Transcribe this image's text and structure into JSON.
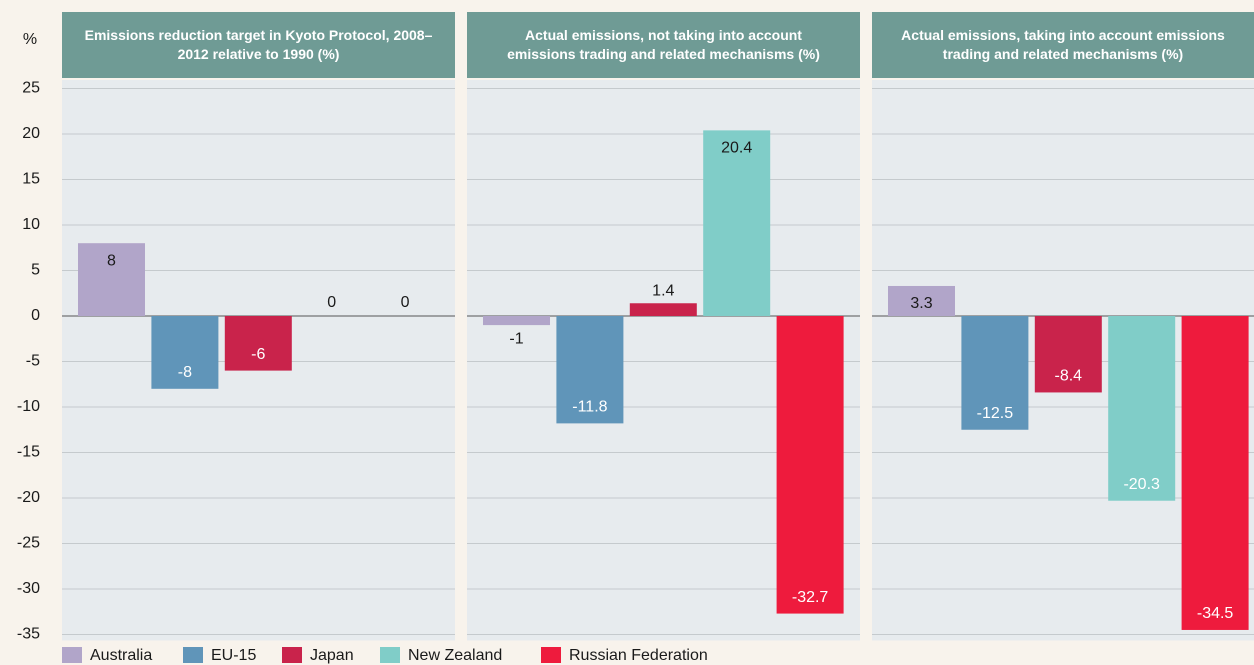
{
  "chart_data": {
    "type": "bar",
    "ylabel": "%",
    "categories": [
      "Emissions reduction target in Kyoto Protocol, 2008–2012 relative to 1990 (%)",
      "Actual emissions, not taking into account emissions trading and related mechanisms (%)",
      "Actual emissions, taking into account emissions trading and related mechanisms (%)"
    ],
    "series": [
      {
        "name": "Australia",
        "color": "#b1a5c9",
        "values": [
          8,
          -1,
          3.3
        ]
      },
      {
        "name": "EU-15",
        "color": "#6095b9",
        "values": [
          -8,
          -11.8,
          -12.5
        ]
      },
      {
        "name": "Japan",
        "color": "#c9234b",
        "values": [
          -6,
          1.4,
          -8.4
        ]
      },
      {
        "name": "New Zealand",
        "color": "#80cdc8",
        "values": [
          0,
          20.4,
          -20.3
        ]
      },
      {
        "name": "Russian Federation",
        "color": "#ee1b3d",
        "values": [
          0,
          -32.7,
          -34.5
        ]
      }
    ],
    "ylim": [
      -35,
      25
    ],
    "yticks": [
      25,
      20,
      15,
      10,
      5,
      0,
      -5,
      -10,
      -15,
      -20,
      -25,
      -30,
      -35
    ],
    "grid": true
  }
}
